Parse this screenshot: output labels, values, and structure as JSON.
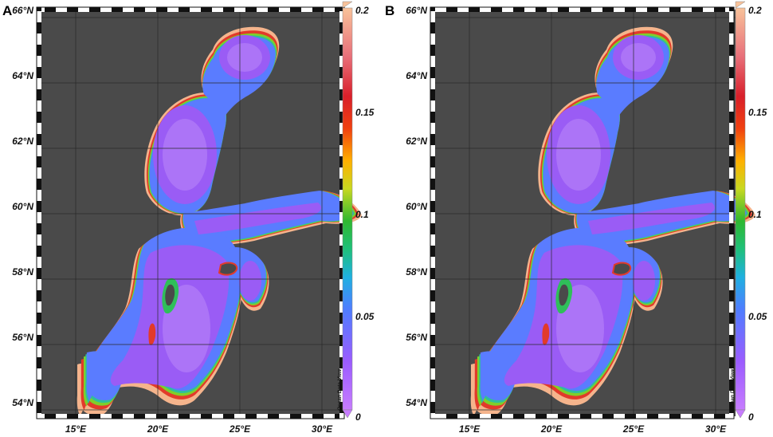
{
  "panels": [
    {
      "letter": "A"
    },
    {
      "letter": "B"
    }
  ],
  "lat_labels": [
    "66°N",
    "64°N",
    "62°N",
    "60°N",
    "58°N",
    "56°N",
    "54°N"
  ],
  "lon_labels": [
    "15°E",
    "20°E",
    "25°E",
    "30°E"
  ],
  "colorbar": {
    "ticks": [
      "0.2",
      "0.15",
      "0.1",
      "0.05",
      "0"
    ],
    "credit": "Ocean Data View"
  },
  "colors": {
    "land": "#4a4a4a",
    "low": "#b070f0",
    "mid": "#3fbf4a",
    "high": "#f5b48c",
    "grid": "#2a2a2a"
  }
}
